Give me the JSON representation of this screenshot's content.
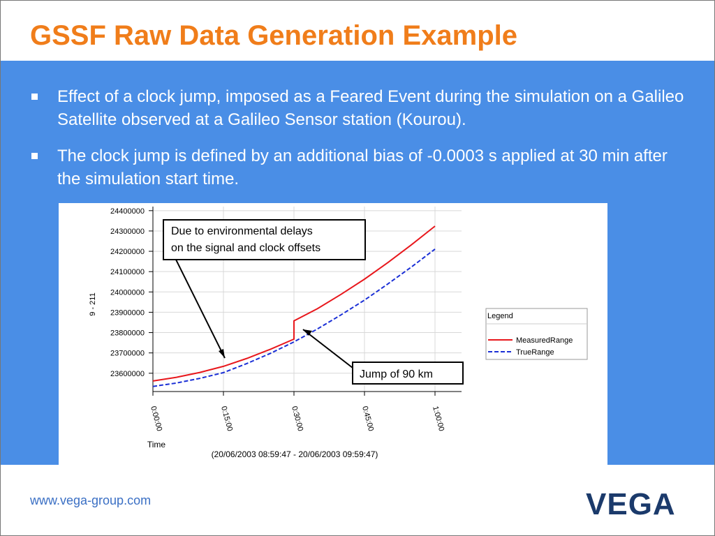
{
  "header": {
    "title": "GSSF Raw Data Generation Example"
  },
  "bullets": [
    "Effect of a clock jump, imposed as a Feared Event during the simulation on a Galileo Satellite observed at a Galileo Sensor station (Kourou).",
    "The clock jump is defined by an additional bias of -0.0003 s applied at 30 min after the simulation start time."
  ],
  "footer": {
    "url": "www.vega-group.com",
    "logo": "VEGA"
  },
  "chart_data": {
    "type": "line",
    "y_label": "9 - 211",
    "x_label": "Time",
    "x_sublabel": "(20/06/2003 08:59:47 - 20/06/2003 09:59:47)",
    "x": [
      0,
      5,
      10,
      15,
      20,
      25,
      30,
      30,
      35,
      40,
      45,
      50,
      55,
      60
    ],
    "series": [
      {
        "name": "MeasuredRange",
        "color": "#e8171c",
        "dash": false,
        "values": [
          23562000,
          23580000,
          23604000,
          23634000,
          23673000,
          23718000,
          23768000,
          23858000,
          23918000,
          23988000,
          24063000,
          24145000,
          24232000,
          24324000
        ]
      },
      {
        "name": "TrueRange",
        "color": "#1a2fd6",
        "dash": true,
        "values": [
          23535000,
          23552000,
          23575000,
          23603000,
          23648000,
          23698000,
          23754000,
          23754000,
          23818000,
          23887000,
          23960000,
          24040000,
          24123000,
          24211000
        ]
      }
    ],
    "xlim": [
      0,
      60
    ],
    "xticks": [
      {
        "value": 0,
        "label": "0:00:00"
      },
      {
        "value": 15,
        "label": "0:15:00"
      },
      {
        "value": 30,
        "label": "0:30:00"
      },
      {
        "value": 45,
        "label": "0:45:00"
      },
      {
        "value": 60,
        "label": "1:00:00"
      }
    ],
    "ylim": [
      23510000,
      24420000
    ],
    "yticks": [
      23600000,
      23700000,
      23800000,
      23900000,
      24000000,
      24100000,
      24200000,
      24300000,
      24400000
    ],
    "grid": true,
    "legend_title": "Legend",
    "legend_position": "right",
    "annotations": [
      "Due to environmental delays on the signal and clock offsets",
      "Jump of 90 km"
    ]
  }
}
